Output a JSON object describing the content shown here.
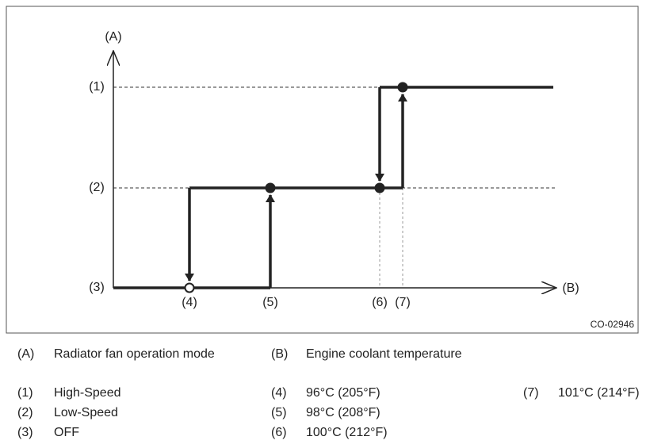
{
  "figure": {
    "axis_a": "(A)",
    "axis_b": "(B)",
    "levels": [
      "(1)",
      "(2)",
      "(3)"
    ],
    "points": [
      "(4)",
      "(5)",
      "(6)",
      "(7)"
    ],
    "id": "CO-02946"
  },
  "legend": [
    {
      "code": "(A)",
      "text": "Radiator fan operation mode"
    },
    {
      "code": "(B)",
      "text": "Engine coolant temperature"
    },
    {
      "code": "(1)",
      "text": "High-Speed"
    },
    {
      "code": "(2)",
      "text": "Low-Speed"
    },
    {
      "code": "(3)",
      "text": "OFF"
    },
    {
      "code": "(4)",
      "text": "96°C (205°F)"
    },
    {
      "code": "(5)",
      "text": "98°C (208°F)"
    },
    {
      "code": "(6)",
      "text": "100°C (212°F)"
    },
    {
      "code": "(7)",
      "text": "101°C (214°F)"
    }
  ]
}
